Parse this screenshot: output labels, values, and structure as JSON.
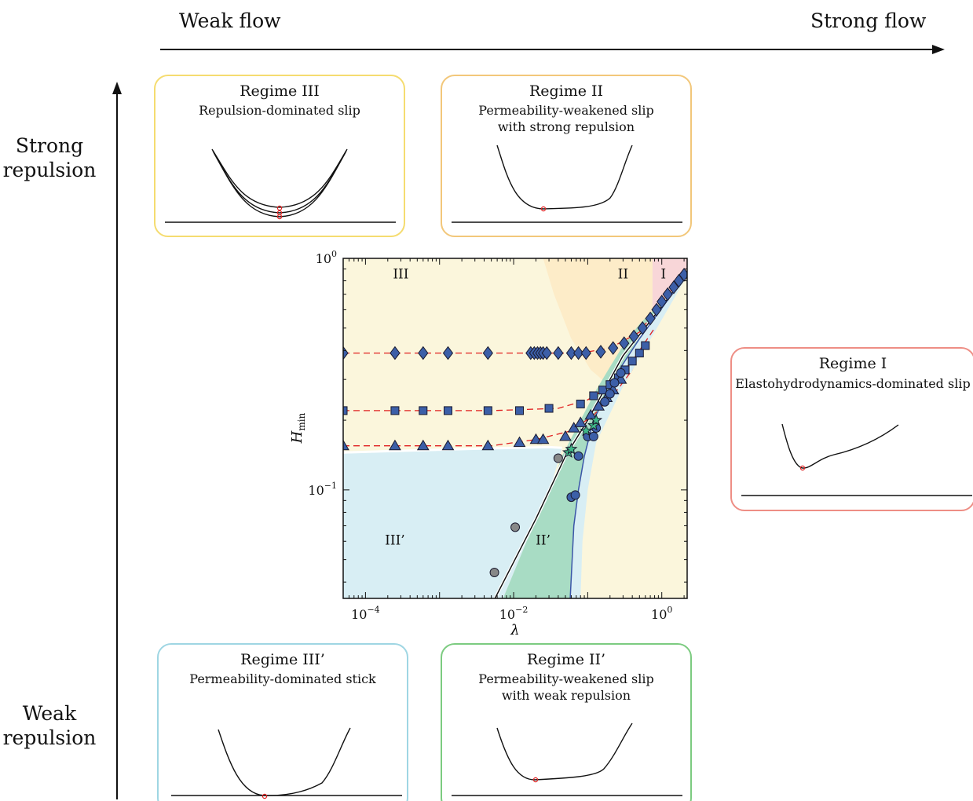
{
  "axes": {
    "flow_weak": "Weak flow",
    "flow_strong": "Strong flow",
    "repulsion_strong": [
      "Strong",
      "repulsion"
    ],
    "repulsion_weak": [
      "Weak",
      "repulsion"
    ]
  },
  "regimes": {
    "III": {
      "title": "Regime III",
      "subtitle": [
        "Repulsion-dominated slip"
      ],
      "border": "#f5dc70"
    },
    "II": {
      "title": "Regime II",
      "subtitle": [
        "Permeability-weakened slip",
        "with strong repulsion"
      ],
      "border": "#f2c77a"
    },
    "I": {
      "title": "Regime I",
      "subtitle": [
        "Elastohydrodynamics-dominated slip"
      ],
      "border": "#ee8e85"
    },
    "III_prime": {
      "title": "Regime III’",
      "subtitle": [
        "Permeability-dominated stick"
      ],
      "border": "#9fd6e3"
    },
    "II_prime": {
      "title": "Regime II’",
      "subtitle": [
        "Permeability-weakened slip",
        "with weak repulsion"
      ],
      "border": "#7ccb80"
    }
  },
  "colors": {
    "III": "#fbf6dc",
    "II": "#fdecc8",
    "I": "#f8d6d8",
    "III_prime": "#d8eef4",
    "II_prime": "#a8dcc4",
    "marker_fill": "#3c5fa8",
    "marker_edge": "#1a1a2e",
    "dashed": "#e02020",
    "boundary_blue": "#3b56a8"
  },
  "chart_data": {
    "type": "scatter",
    "xlabel": "λ",
    "ylabel": "H_min",
    "x_scale": "log",
    "y_scale": "log",
    "xlim": [
      5e-05,
      2.2
    ],
    "ylim": [
      0.034,
      1.0
    ],
    "x_ticks": [
      {
        "value": 0.0001,
        "label": "10",
        "exp": "−4"
      },
      {
        "value": 0.01,
        "label": "10",
        "exp": "−2"
      },
      {
        "value": 1,
        "label": "10",
        "exp": "0"
      }
    ],
    "y_ticks": [
      {
        "value": 0.1,
        "label": "10",
        "exp": "−1"
      },
      {
        "value": 1,
        "label": "10",
        "exp": "0"
      }
    ],
    "region_labels": [
      {
        "text": "III",
        "x": 0.0003,
        "y": 0.82
      },
      {
        "text": "II",
        "x": 0.3,
        "y": 0.82
      },
      {
        "text": "I",
        "x": 1.05,
        "y": 0.82
      },
      {
        "text": "III’",
        "x": 0.00025,
        "y": 0.058
      },
      {
        "text": "II’",
        "x": 0.025,
        "y": 0.058
      }
    ],
    "series": [
      {
        "marker": "diamond",
        "x": [
          5e-05,
          0.00025,
          0.0006,
          0.0013,
          0.0045,
          0.017,
          0.019,
          0.021,
          0.023,
          0.025,
          0.028,
          0.04,
          0.06,
          0.075,
          0.095,
          0.15,
          0.22,
          0.31,
          0.42,
          0.55,
          0.7,
          0.85,
          1.0,
          1.2,
          1.45,
          1.7,
          2.0
        ],
        "y": [
          0.39,
          0.39,
          0.39,
          0.39,
          0.39,
          0.39,
          0.39,
          0.39,
          0.39,
          0.39,
          0.39,
          0.39,
          0.39,
          0.39,
          0.39,
          0.395,
          0.41,
          0.43,
          0.46,
          0.5,
          0.55,
          0.6,
          0.65,
          0.7,
          0.75,
          0.8,
          0.85
        ]
      },
      {
        "marker": "square",
        "x": [
          5e-05,
          0.00025,
          0.0006,
          0.0013,
          0.0045,
          0.012,
          0.03,
          0.08,
          0.12,
          0.16,
          0.2,
          0.26,
          0.32,
          0.4,
          0.5,
          0.6
        ],
        "y": [
          0.22,
          0.22,
          0.22,
          0.22,
          0.22,
          0.22,
          0.225,
          0.235,
          0.255,
          0.27,
          0.285,
          0.305,
          0.33,
          0.36,
          0.39,
          0.42
        ]
      },
      {
        "marker": "triangle",
        "x": [
          5e-05,
          0.00025,
          0.0006,
          0.0013,
          0.0045,
          0.012,
          0.02,
          0.025,
          0.05,
          0.065,
          0.08,
          0.11,
          0.14,
          0.18,
          0.22,
          0.28
        ],
        "y": [
          0.155,
          0.155,
          0.155,
          0.155,
          0.155,
          0.16,
          0.165,
          0.165,
          0.17,
          0.185,
          0.195,
          0.21,
          0.23,
          0.25,
          0.27,
          0.3
        ]
      },
      {
        "marker": "circle",
        "x": [
          0.06,
          0.068,
          0.075,
          0.1,
          0.12,
          0.13,
          0.17,
          0.2,
          0.23,
          0.28
        ],
        "y": [
          0.093,
          0.095,
          0.14,
          0.17,
          0.17,
          0.185,
          0.24,
          0.26,
          0.29,
          0.32
        ]
      },
      {
        "marker": "circle_grey",
        "x": [
          0.0055,
          0.0105,
          0.04
        ],
        "y": [
          0.044,
          0.069,
          0.137
        ]
      },
      {
        "marker": "star",
        "x": [
          0.055,
          0.06,
          0.095,
          0.12,
          0.13
        ],
        "y": [
          0.145,
          0.15,
          0.18,
          0.19,
          0.2
        ]
      }
    ]
  },
  "sketch_minima": {
    "marker_color": "#e02020"
  }
}
